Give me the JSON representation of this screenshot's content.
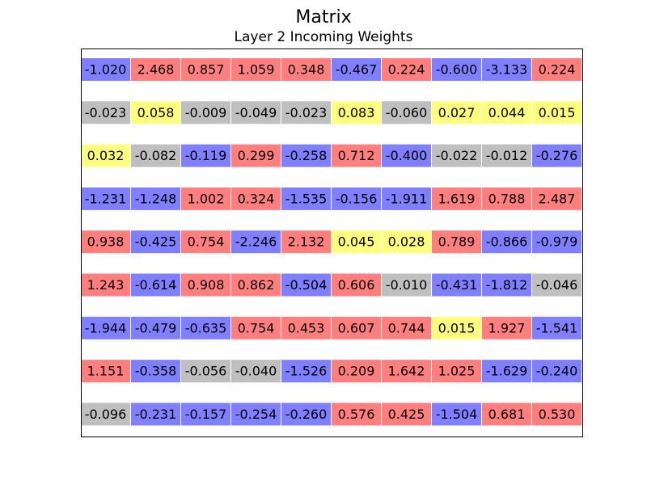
{
  "chart_data": {
    "type": "table",
    "title": "Matrix",
    "subtitle": "Layer 2 Incoming Weights",
    "colors": {
      "positive": "#ff7f7f",
      "negative": "#7f7fff",
      "small_positive": "#ffff7f",
      "small_negative": "#bfbfbf"
    },
    "rows": [
      [
        "-1.020",
        "2.468",
        "0.857",
        "1.059",
        "0.348",
        "-0.467",
        "0.224",
        "-0.600",
        "-3.133",
        "0.224"
      ],
      [
        "-0.023",
        "0.058",
        "-0.009",
        "-0.049",
        "-0.023",
        "0.083",
        "-0.060",
        "0.027",
        "0.044",
        "0.015"
      ],
      [
        "0.032",
        "-0.082",
        "-0.119",
        "0.299",
        "-0.258",
        "0.712",
        "-0.400",
        "-0.022",
        "-0.012",
        "-0.276"
      ],
      [
        "-1.231",
        "-1.248",
        "1.002",
        "0.324",
        "-1.535",
        "-0.156",
        "-1.911",
        "1.619",
        "0.788",
        "2.487"
      ],
      [
        "0.938",
        "-0.425",
        "0.754",
        "-2.246",
        "2.132",
        "0.045",
        "0.028",
        "0.789",
        "-0.866",
        "-0.979"
      ],
      [
        "1.243",
        "-0.614",
        "0.908",
        "0.862",
        "-0.504",
        "0.606",
        "-0.010",
        "-0.431",
        "-1.812",
        "-0.046"
      ],
      [
        "-1.944",
        "-0.479",
        "-0.635",
        "0.754",
        "0.453",
        "0.607",
        "0.744",
        "0.015",
        "1.927",
        "-1.541"
      ],
      [
        "1.151",
        "-0.358",
        "-0.056",
        "-0.040",
        "-1.526",
        "0.209",
        "1.642",
        "1.025",
        "-1.629",
        "-0.240"
      ],
      [
        "-0.096",
        "-0.231",
        "-0.157",
        "-0.254",
        "-0.260",
        "0.576",
        "0.425",
        "-1.504",
        "0.681",
        "0.530"
      ]
    ]
  }
}
